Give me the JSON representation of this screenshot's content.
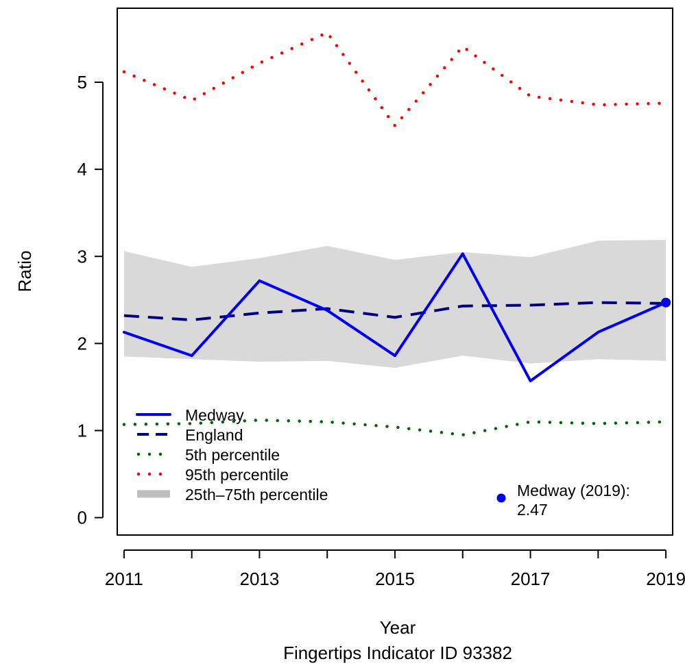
{
  "chart_data": {
    "type": "line",
    "xlabel": "Year",
    "ylabel": "Ratio",
    "caption": "Fingertips Indicator ID 93382",
    "x": [
      2011,
      2012,
      2013,
      2014,
      2015,
      2016,
      2017,
      2018,
      2019
    ],
    "xlim": [
      2010.9,
      2019.1
    ],
    "ylim": [
      -0.2,
      5.85
    ],
    "x_ticks": [
      2011,
      2012,
      2013,
      2014,
      2015,
      2016,
      2017,
      2018,
      2019
    ],
    "x_tick_labels": [
      "2011",
      "",
      "2013",
      "",
      "2015",
      "",
      "2017",
      "",
      "2019"
    ],
    "y_ticks": [
      0,
      1,
      2,
      3,
      4,
      5
    ],
    "y_tick_labels": [
      "0",
      "1",
      "2",
      "3",
      "4",
      "5"
    ],
    "grid": false,
    "legend_position": "bottom-left",
    "series": [
      {
        "name": "Medway",
        "style": "solid",
        "color": "#0000ee",
        "values": [
          2.13,
          1.86,
          2.72,
          2.38,
          1.86,
          3.03,
          1.57,
          2.13,
          2.47
        ]
      },
      {
        "name": "England",
        "style": "dashed",
        "color": "#000080",
        "values": [
          2.32,
          2.27,
          2.35,
          2.4,
          2.3,
          2.43,
          2.44,
          2.47,
          2.46
        ]
      },
      {
        "name": "5th percentile",
        "style": "dotted",
        "color": "#006400",
        "values": [
          1.07,
          1.08,
          1.12,
          1.1,
          1.04,
          0.95,
          1.1,
          1.08,
          1.1
        ]
      },
      {
        "name": "95th percentile",
        "style": "dotted",
        "color": "#ff0000",
        "values": [
          5.12,
          4.79,
          5.22,
          5.57,
          4.5,
          5.41,
          4.84,
          4.74,
          4.76
        ]
      }
    ],
    "band": {
      "name": "25th–75th percentile",
      "color": "#d9d9d9",
      "legend_color": "#bebebe",
      "lower": [
        1.85,
        1.82,
        1.79,
        1.8,
        1.72,
        1.86,
        1.77,
        1.82,
        1.8
      ],
      "upper": [
        3.06,
        2.88,
        2.98,
        3.12,
        2.96,
        3.05,
        2.99,
        3.18,
        3.19
      ]
    },
    "highlight": {
      "x": 2019,
      "y": 2.47,
      "color": "#0000ee",
      "label_line1": "Medway (2019):",
      "label_line2": "2.47"
    }
  }
}
